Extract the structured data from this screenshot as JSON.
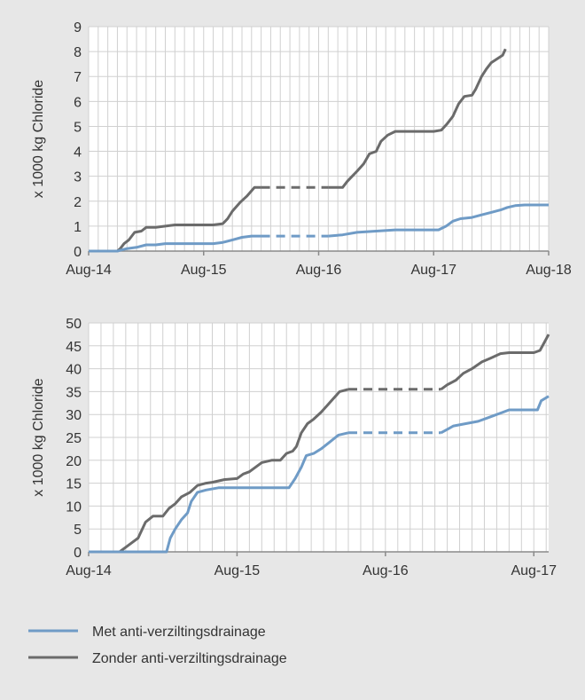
{
  "legend": {
    "met_label": "Met anti-verziltingsdrainage",
    "zonder_label": "Zonder anti-verziltingsdrainage"
  },
  "colors": {
    "met": "#6f9bc6",
    "zonder": "#6b6b6b",
    "grid": "#d0d0d0",
    "axis": "#8a8a8a",
    "background": "#e7e7e7",
    "plot_background": "#ffffff"
  },
  "chart_data": [
    {
      "type": "line",
      "title": "",
      "xlabel": "",
      "ylabel": "x 1000 kg Chloride",
      "x_unit": "months since Aug-14",
      "xlim": [
        0,
        48
      ],
      "ylim": [
        0,
        9
      ],
      "x_ticks": [
        0,
        12,
        24,
        36,
        48
      ],
      "x_tick_labels": [
        "Aug-14",
        "Aug-15",
        "Aug-16",
        "Aug-17",
        "Aug-18"
      ],
      "y_ticks": [
        0,
        1,
        2,
        3,
        4,
        5,
        6,
        7,
        8,
        9
      ],
      "y_tick_labels": [
        "0",
        "1",
        "2",
        "3",
        "4",
        "5",
        "6",
        "7",
        "8",
        "9"
      ],
      "grid": true,
      "series": [
        {
          "name": "Zonder anti-verziltingsdrainage",
          "color": "#6b6b6b",
          "solid1": [
            [
              0,
              0
            ],
            [
              1,
              0
            ],
            [
              2,
              0
            ],
            [
              3,
              0
            ],
            [
              3.3,
              0.1
            ],
            [
              3.7,
              0.3
            ],
            [
              4.2,
              0.45
            ],
            [
              4.8,
              0.75
            ],
            [
              5.5,
              0.8
            ],
            [
              6,
              0.95
            ],
            [
              7,
              0.95
            ],
            [
              8,
              1.0
            ],
            [
              9,
              1.05
            ],
            [
              11,
              1.05
            ],
            [
              13,
              1.05
            ],
            [
              14,
              1.1
            ],
            [
              14.5,
              1.3
            ],
            [
              15,
              1.6
            ],
            [
              15.8,
              1.95
            ],
            [
              16.5,
              2.2
            ],
            [
              17.3,
              2.55
            ],
            [
              18,
              2.55
            ]
          ],
          "dashed": [
            [
              18,
              2.55
            ],
            [
              25,
              2.55
            ]
          ],
          "solid2": [
            [
              25,
              2.55
            ],
            [
              26.5,
              2.55
            ],
            [
              27,
              2.8
            ],
            [
              27.5,
              3.0
            ],
            [
              28,
              3.2
            ],
            [
              28.7,
              3.5
            ],
            [
              29.3,
              3.9
            ],
            [
              30,
              4.0
            ],
            [
              30.5,
              4.4
            ],
            [
              31.2,
              4.65
            ],
            [
              32,
              4.8
            ],
            [
              34,
              4.8
            ],
            [
              36,
              4.8
            ],
            [
              36.8,
              4.85
            ],
            [
              37.4,
              5.1
            ],
            [
              38,
              5.4
            ],
            [
              38.6,
              5.9
            ],
            [
              39.2,
              6.2
            ],
            [
              40,
              6.25
            ],
            [
              40.4,
              6.5
            ],
            [
              41,
              7.0
            ],
            [
              41.5,
              7.3
            ],
            [
              42,
              7.55
            ],
            [
              42.6,
              7.7
            ],
            [
              43.2,
              7.85
            ],
            [
              43.5,
              8.1
            ]
          ]
        },
        {
          "name": "Met anti-verziltingsdrainage",
          "color": "#6f9bc6",
          "solid1": [
            [
              0,
              0
            ],
            [
              3,
              0
            ],
            [
              3.5,
              0.05
            ],
            [
              4,
              0.1
            ],
            [
              5,
              0.15
            ],
            [
              6,
              0.25
            ],
            [
              7,
              0.25
            ],
            [
              8,
              0.3
            ],
            [
              10,
              0.3
            ],
            [
              13,
              0.3
            ],
            [
              14,
              0.35
            ],
            [
              15,
              0.45
            ],
            [
              16,
              0.55
            ],
            [
              17,
              0.6
            ],
            [
              18,
              0.6
            ]
          ],
          "dashed": [
            [
              18,
              0.6
            ],
            [
              25,
              0.6
            ]
          ],
          "solid2": [
            [
              25,
              0.6
            ],
            [
              26.5,
              0.65
            ],
            [
              28,
              0.75
            ],
            [
              30,
              0.8
            ],
            [
              32,
              0.85
            ],
            [
              34,
              0.85
            ],
            [
              36.5,
              0.85
            ],
            [
              37.3,
              1.0
            ],
            [
              38,
              1.2
            ],
            [
              38.8,
              1.3
            ],
            [
              40,
              1.35
            ],
            [
              41,
              1.45
            ],
            [
              42,
              1.55
            ],
            [
              43,
              1.65
            ],
            [
              43.7,
              1.75
            ],
            [
              44.5,
              1.82
            ],
            [
              45.5,
              1.85
            ],
            [
              48,
              1.85
            ]
          ]
        }
      ]
    },
    {
      "type": "line",
      "title": "",
      "xlabel": "",
      "ylabel": "x 1000 kg Chloride",
      "x_unit": "months since Aug-14",
      "xlim": [
        0,
        37.2
      ],
      "ylim": [
        0,
        50
      ],
      "x_ticks": [
        0,
        12,
        24,
        36
      ],
      "x_tick_labels": [
        "Aug-14",
        "Aug-15",
        "Aug-16",
        "Aug-17"
      ],
      "y_ticks": [
        0,
        5,
        10,
        15,
        20,
        25,
        30,
        35,
        40,
        45,
        50
      ],
      "y_tick_labels": [
        "0",
        "5",
        "10",
        "15",
        "20",
        "25",
        "30",
        "35",
        "40",
        "45",
        "50"
      ],
      "grid": true,
      "series": [
        {
          "name": "Zonder anti-verziltingsdrainage",
          "color": "#6b6b6b",
          "solid1": [
            [
              0,
              0
            ],
            [
              2.5,
              0
            ],
            [
              3,
              1
            ],
            [
              3.5,
              2
            ],
            [
              4,
              3
            ],
            [
              4.6,
              6.5
            ],
            [
              5.2,
              7.8
            ],
            [
              6,
              7.8
            ],
            [
              6.5,
              9.5
            ],
            [
              7,
              10.5
            ],
            [
              7.5,
              12
            ],
            [
              8.2,
              13
            ],
            [
              8.8,
              14.5
            ],
            [
              9.5,
              15
            ],
            [
              10,
              15.2
            ],
            [
              11,
              15.8
            ],
            [
              12,
              16
            ],
            [
              12.5,
              17
            ],
            [
              13,
              17.5
            ],
            [
              14,
              19.5
            ],
            [
              14.8,
              20
            ],
            [
              15.5,
              20
            ],
            [
              16,
              21.5
            ],
            [
              16.5,
              22
            ],
            [
              16.8,
              23
            ],
            [
              17.2,
              26
            ],
            [
              17.7,
              28
            ],
            [
              18.2,
              29
            ],
            [
              18.8,
              30.5
            ],
            [
              19.3,
              32
            ],
            [
              19.8,
              33.5
            ],
            [
              20.3,
              35
            ],
            [
              21,
              35.5
            ]
          ],
          "dashed": [
            [
              21,
              35.5
            ],
            [
              28.5,
              35.5
            ]
          ],
          "solid2": [
            [
              28.5,
              35.5
            ],
            [
              29,
              36.5
            ],
            [
              29.7,
              37.5
            ],
            [
              30.3,
              39
            ],
            [
              31,
              40
            ],
            [
              31.8,
              41.5
            ],
            [
              32.5,
              42.3
            ],
            [
              33.3,
              43.3
            ],
            [
              34,
              43.5
            ],
            [
              36,
              43.5
            ],
            [
              36.5,
              44
            ],
            [
              37,
              46.5
            ],
            [
              37.2,
              47.5
            ]
          ]
        },
        {
          "name": "Met anti-verziltingsdrainage",
          "color": "#6f9bc6",
          "solid1": [
            [
              0,
              0
            ],
            [
              6,
              0
            ],
            [
              6.3,
              0
            ],
            [
              6.6,
              3
            ],
            [
              7,
              5
            ],
            [
              7.5,
              7
            ],
            [
              8,
              8.5
            ],
            [
              8.3,
              11
            ],
            [
              8.8,
              13
            ],
            [
              9.5,
              13.5
            ],
            [
              10.5,
              14
            ],
            [
              11,
              14
            ],
            [
              13,
              14
            ],
            [
              15,
              14
            ],
            [
              16.2,
              14
            ],
            [
              16.7,
              16
            ],
            [
              17.2,
              18.5
            ],
            [
              17.6,
              21
            ],
            [
              18.2,
              21.5
            ],
            [
              18.8,
              22.5
            ],
            [
              19.5,
              24
            ],
            [
              20.2,
              25.5
            ],
            [
              21,
              26
            ]
          ],
          "dashed": [
            [
              21,
              26
            ],
            [
              28.5,
              26
            ]
          ],
          "solid2": [
            [
              28.5,
              26
            ],
            [
              29.5,
              27.5
            ],
            [
              30.5,
              28
            ],
            [
              31.5,
              28.5
            ],
            [
              32.5,
              29.5
            ],
            [
              33.5,
              30.5
            ],
            [
              34,
              31
            ],
            [
              36,
              31
            ],
            [
              36.3,
              31
            ],
            [
              36.6,
              33
            ],
            [
              37.2,
              34
            ]
          ]
        }
      ]
    }
  ]
}
